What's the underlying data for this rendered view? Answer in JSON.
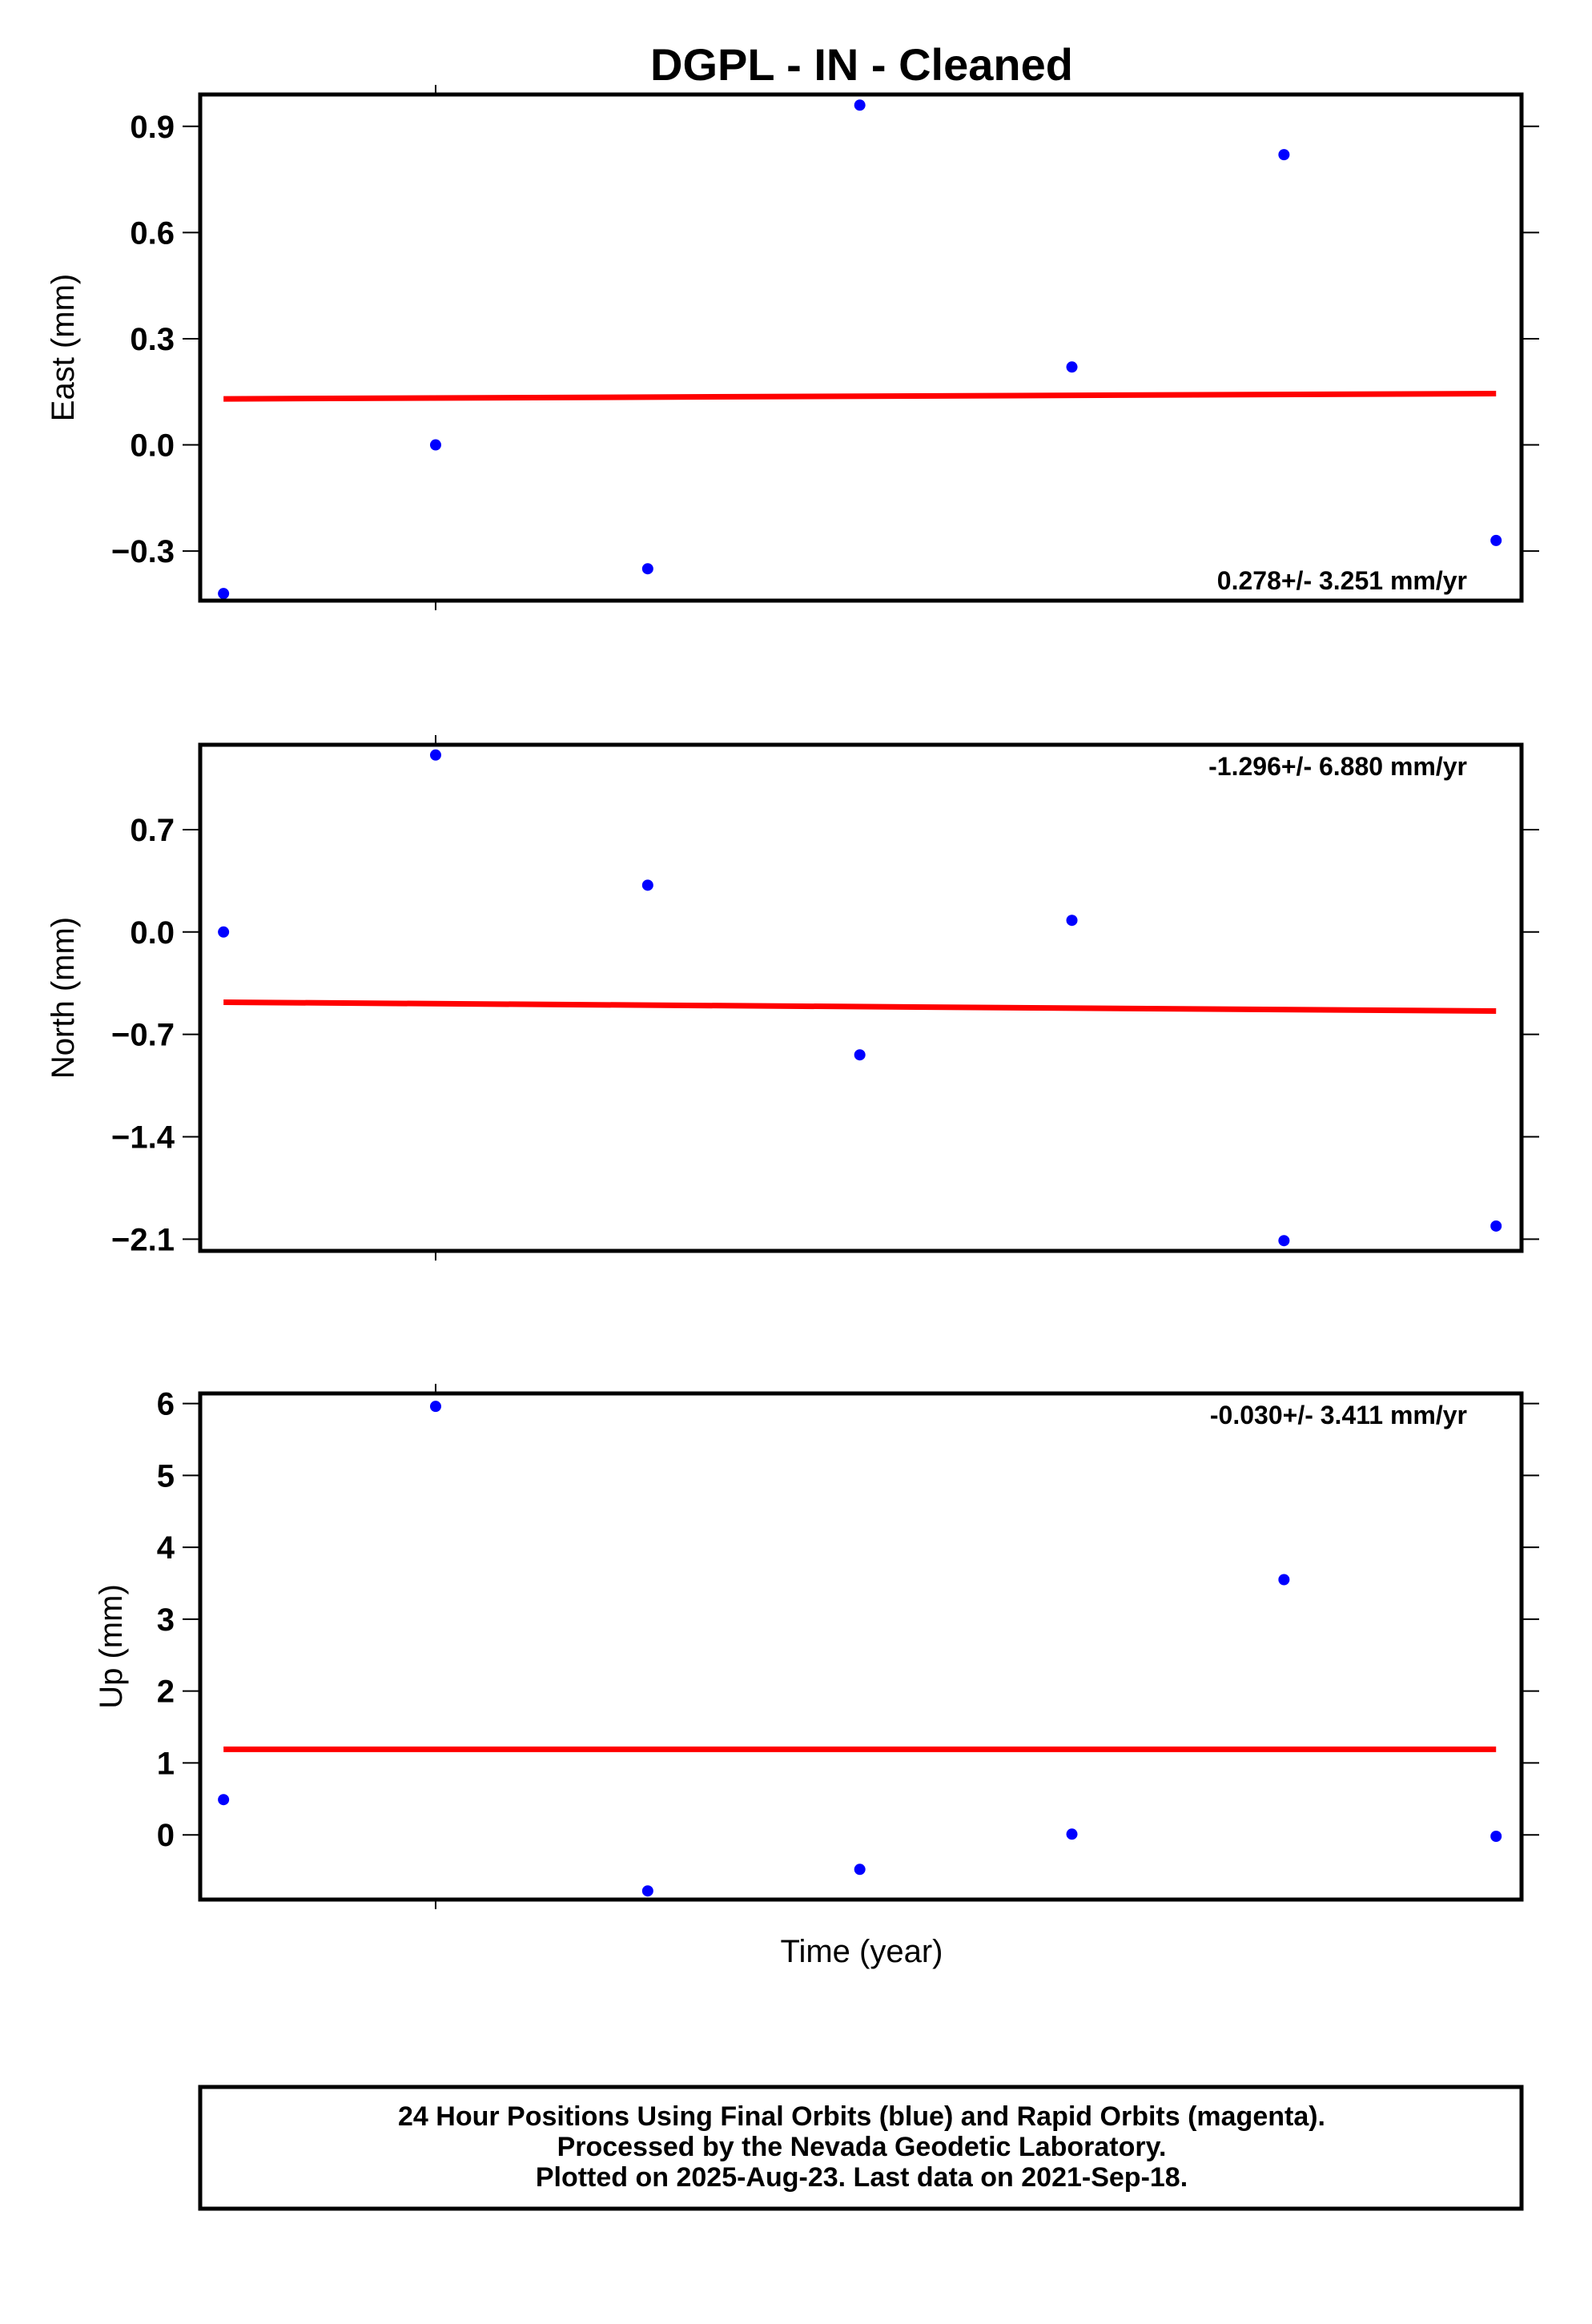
{
  "chart_data": {
    "type": "scatter",
    "title": "DGPL  - IN - Cleaned",
    "xlabel": "Time (year)",
    "x": [
      0,
      1,
      2,
      3,
      4,
      5,
      6
    ],
    "xlim": [
      -0.11,
      6.12
    ],
    "marker_color": "#0000ff",
    "fit_color": "#ff0000",
    "panels": [
      {
        "ylabel": "East (mm)",
        "ylim": [
          -0.44,
          0.99
        ],
        "ticks": [
          {
            "v": 0.9,
            "label": "0.9"
          },
          {
            "v": 0.6,
            "label": "0.6"
          },
          {
            "v": 0.3,
            "label": "0.3"
          },
          {
            "v": 0.0,
            "label": "0.0"
          },
          {
            "v": -0.3,
            "label": "−0.3"
          }
        ],
        "values": [
          -0.42,
          0.0,
          -0.35,
          0.96,
          0.22,
          0.82,
          -0.27
        ],
        "fit": [
          0.13,
          0.145
        ],
        "rate": "0.278+/- 3.251 mm/yr",
        "rate_position": "bottom-right"
      },
      {
        "ylabel": "North (mm)",
        "ylim": [
          -2.18,
          1.28
        ],
        "ticks": [
          {
            "v": 0.7,
            "label": "0.7"
          },
          {
            "v": 0.0,
            "label": "0.0"
          },
          {
            "v": -0.7,
            "label": "−0.7"
          },
          {
            "v": -1.4,
            "label": "−1.4"
          },
          {
            "v": -2.1,
            "label": "−2.1"
          }
        ],
        "values": [
          0.0,
          1.21,
          0.32,
          -0.84,
          0.08,
          -2.11,
          -2.01
        ],
        "fit": [
          -0.48,
          -0.54
        ],
        "rate": "-1.296+/- 6.880 mm/yr",
        "rate_position": "top-right"
      },
      {
        "ylabel": "Up (mm)",
        "ylim": [
          -0.9,
          6.14
        ],
        "ticks": [
          {
            "v": 6,
            "label": "6"
          },
          {
            "v": 5,
            "label": "5"
          },
          {
            "v": 4,
            "label": "4"
          },
          {
            "v": 3,
            "label": "3"
          },
          {
            "v": 2,
            "label": "2"
          },
          {
            "v": 1,
            "label": "1"
          },
          {
            "v": 0,
            "label": "0"
          }
        ],
        "values": [
          0.49,
          5.96,
          -0.78,
          -0.48,
          0.01,
          3.55,
          -0.02
        ],
        "fit": [
          1.19,
          1.19
        ],
        "rate": "-0.030+/- 3.411 mm/yr",
        "rate_position": "top-right"
      }
    ],
    "footer": [
      "24 Hour Positions Using Final Orbits (blue) and Rapid Orbits (magenta).",
      "Processed by the Nevada Geodetic Laboratory.",
      "Plotted on 2025-Aug-23. Last data on 2021-Sep-18."
    ]
  }
}
